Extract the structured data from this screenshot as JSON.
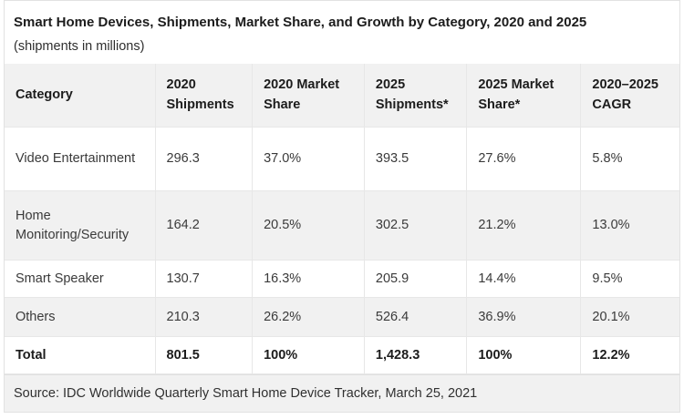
{
  "header": {
    "title": "Smart Home Devices, Shipments, Market Share, and Growth by Category, 2020 and 2025",
    "subtitle": "(shipments in millions)"
  },
  "colors": {
    "stripe": "#f1f1f1",
    "border": "#e2e2e2",
    "heading_text": "#1c1c1c",
    "body_text": "#3a3a3a"
  },
  "chart_data": {
    "type": "table",
    "title": "Smart Home Devices, Shipments, Market Share, and Growth by Category, 2020 and 2025",
    "subtitle": "(shipments in millions)",
    "columns": [
      "Category",
      "2020 Shipments",
      "2020 Market Share",
      "2025 Shipments*",
      "2025 Market Share*",
      "2020–2025 CAGR"
    ],
    "rows": [
      [
        "Video Entertainment",
        "296.3",
        "37.0%",
        "393.5",
        "27.6%",
        "5.8%"
      ],
      [
        "Home Monitoring/Security",
        "164.2",
        "20.5%",
        "302.5",
        "21.2%",
        "13.0%"
      ],
      [
        "Smart Speaker",
        "130.7",
        "16.3%",
        "205.9",
        "14.4%",
        "9.5%"
      ],
      [
        "Others",
        "210.3",
        "26.2%",
        "526.4",
        "36.9%",
        "20.1%"
      ]
    ],
    "total": [
      "Total",
      "801.5",
      "100%",
      "1,428.3",
      "100%",
      "12.2%"
    ],
    "source": "Source: IDC Worldwide Quarterly Smart Home Device Tracker, March 25, 2021"
  }
}
